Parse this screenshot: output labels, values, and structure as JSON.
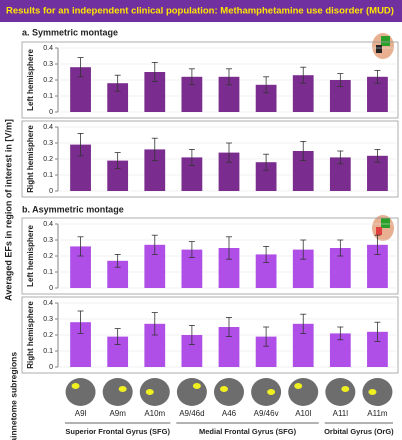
{
  "title": "Results for an independent clinical population: Methamphetamine use disorder (MUD)",
  "y_axis_label": "Averaged EFs in region of interest in [V/m]",
  "x_axis_label": "Brainnetome subregions",
  "sections": [
    "a. Symmetric montage",
    "b. Asymmetric montage"
  ],
  "groups": [
    {
      "name": "Superior Frontal Gyrus (SFG)",
      "categories": [
        "A9l",
        "A9m",
        "A10m"
      ]
    },
    {
      "name": "Medial Frontal Gyrus (SFG)",
      "categories": [
        "A9/46d",
        "A46",
        "A9/46v",
        "A10l"
      ]
    },
    {
      "name": "Orbital Gyrus (OrG)",
      "categories": [
        "A11l",
        "A11m"
      ]
    }
  ],
  "chart_data": [
    {
      "type": "bar",
      "ylabel": "Left hemisphere",
      "color": "#7b2c8f",
      "values": [
        0.28,
        0.18,
        0.25,
        0.22,
        0.22,
        0.17,
        0.23,
        0.2,
        0.22
      ],
      "errors": [
        0.06,
        0.05,
        0.06,
        0.05,
        0.05,
        0.05,
        0.05,
        0.04,
        0.04
      ],
      "ylim": [
        0,
        0.4
      ],
      "yticks": [
        0,
        0.1,
        0.2,
        0.3,
        0.4
      ]
    },
    {
      "type": "bar",
      "ylabel": "Right hemisphere",
      "color": "#7b2c8f",
      "values": [
        0.29,
        0.19,
        0.26,
        0.21,
        0.24,
        0.18,
        0.25,
        0.21,
        0.22
      ],
      "errors": [
        0.07,
        0.05,
        0.07,
        0.05,
        0.06,
        0.05,
        0.06,
        0.04,
        0.04
      ],
      "ylim": [
        0,
        0.4
      ],
      "yticks": [
        0,
        0.1,
        0.2,
        0.3,
        0.4
      ]
    },
    {
      "type": "bar",
      "ylabel": "Left hemisphere",
      "color": "#b04fe8",
      "values": [
        0.26,
        0.17,
        0.27,
        0.24,
        0.25,
        0.21,
        0.24,
        0.25,
        0.27
      ],
      "errors": [
        0.06,
        0.04,
        0.06,
        0.05,
        0.07,
        0.05,
        0.06,
        0.05,
        0.06
      ],
      "ylim": [
        0,
        0.4
      ],
      "yticks": [
        0,
        0.1,
        0.2,
        0.3,
        0.4
      ]
    },
    {
      "type": "bar",
      "ylabel": "Right hemisphere",
      "color": "#b04fe8",
      "values": [
        0.28,
        0.19,
        0.27,
        0.2,
        0.25,
        0.19,
        0.27,
        0.21,
        0.22
      ],
      "errors": [
        0.07,
        0.05,
        0.07,
        0.06,
        0.06,
        0.06,
        0.06,
        0.04,
        0.06
      ],
      "ylim": [
        0,
        0.4
      ],
      "yticks": [
        0,
        0.1,
        0.2,
        0.3,
        0.4
      ]
    }
  ]
}
